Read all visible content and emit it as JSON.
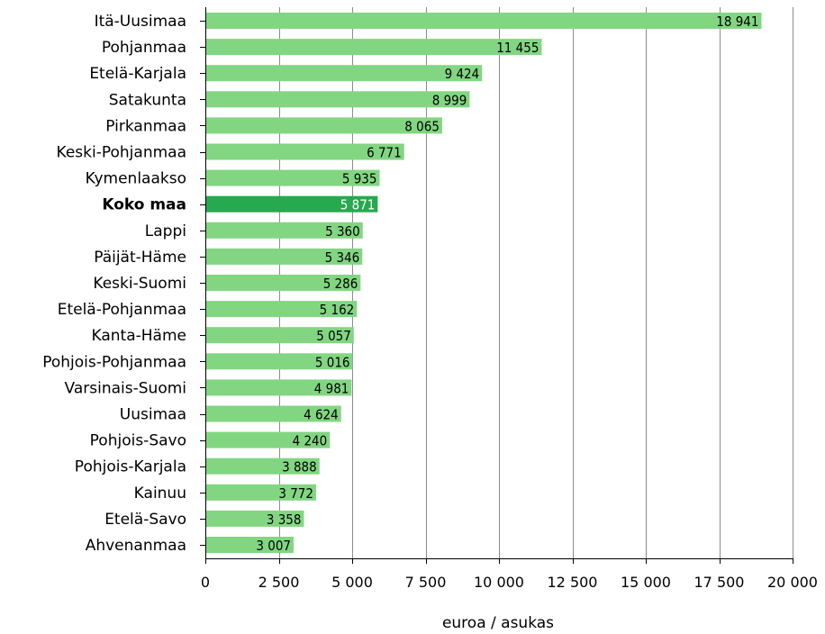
{
  "chart_data": {
    "type": "bar",
    "orientation": "horizontal",
    "categories": [
      "Itä-Uusimaa",
      "Pohjanmaa",
      "Etelä-Karjala",
      "Satakunta",
      "Pirkanmaa",
      "Keski-Pohjanmaa",
      "Kymenlaakso",
      "Koko maa",
      "Lappi",
      "Päijät-Häme",
      "Keski-Suomi",
      "Etelä-Pohjanmaa",
      "Kanta-Häme",
      "Pohjois-Pohjanmaa",
      "Varsinais-Suomi",
      "Uusimaa",
      "Pohjois-Savo",
      "Pohjois-Karjala",
      "Kainuu",
      "Etelä-Savo",
      "Ahvenanmaa"
    ],
    "values": [
      18941,
      11455,
      9424,
      8999,
      8065,
      6771,
      5935,
      5871,
      5360,
      5346,
      5286,
      5162,
      5057,
      5016,
      4981,
      4624,
      4240,
      3888,
      3772,
      3358,
      3007
    ],
    "value_labels": [
      "18 941",
      "11 455",
      "9 424",
      "8 999",
      "8 065",
      "6 771",
      "5 935",
      "5 871",
      "5 360",
      "5 346",
      "5 286",
      "5 162",
      "5 057",
      "5 016",
      "4 981",
      "4 624",
      "4 240",
      "3 888",
      "3 772",
      "3 358",
      "3 007"
    ],
    "highlight_category": "Koko maa",
    "xlim": [
      0,
      20000
    ],
    "xticks": [
      0,
      2500,
      5000,
      7500,
      10000,
      12500,
      15000,
      17500,
      20000
    ],
    "xtick_labels": [
      "0",
      "2 500",
      "5 000",
      "7 500",
      "10 000",
      "12 500",
      "15 000",
      "17 500",
      "20 000"
    ],
    "xlabel": "euroa / asukas",
    "grid": "vertical",
    "colors": {
      "bar": "#82d682",
      "highlight_bar": "#27a94f",
      "grid": "#8c8c8c",
      "axis": "#000000"
    }
  }
}
